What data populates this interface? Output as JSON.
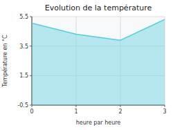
{
  "chart_data": {
    "type": "area",
    "title": "Evolution de la température",
    "x_label": "heure par heure",
    "y_label": "Température en °C",
    "x": [
      0,
      1,
      2,
      3
    ],
    "values": [
      5.05,
      4.3,
      3.9,
      5.3
    ],
    "xlim": [
      0,
      3
    ],
    "ylim": [
      -0.5,
      5.5
    ],
    "xticks": [
      0,
      1,
      2,
      3
    ],
    "yticks": [
      -0.5,
      1.5,
      3.5,
      5.5
    ],
    "color": "#55ccdd",
    "grid": true
  }
}
